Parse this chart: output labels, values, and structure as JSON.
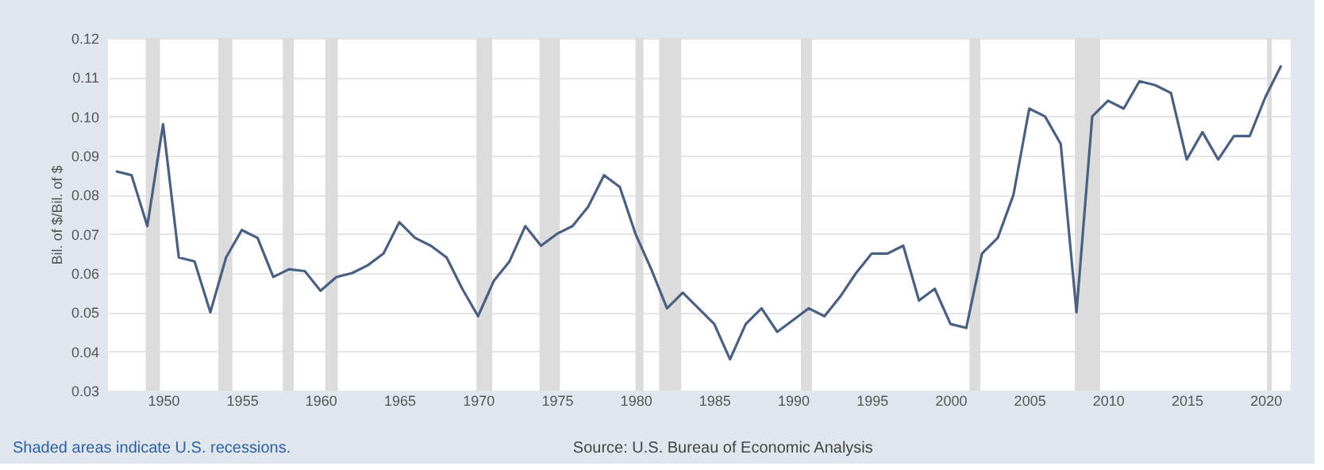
{
  "chart_data": {
    "type": "line",
    "ylabel": "Bil. of $/Bil. of $",
    "x": [
      1947,
      1948,
      1949,
      1950,
      1951,
      1952,
      1953,
      1954,
      1955,
      1956,
      1957,
      1958,
      1959,
      1960,
      1961,
      1962,
      1963,
      1964,
      1965,
      1966,
      1967,
      1968,
      1969,
      1970,
      1971,
      1972,
      1973,
      1974,
      1975,
      1976,
      1977,
      1978,
      1979,
      1980,
      1981,
      1982,
      1983,
      1984,
      1985,
      1986,
      1987,
      1988,
      1989,
      1990,
      1991,
      1992,
      1993,
      1994,
      1995,
      1996,
      1997,
      1998,
      1999,
      2000,
      2001,
      2002,
      2003,
      2004,
      2005,
      2006,
      2007,
      2008,
      2009,
      2010,
      2011,
      2012,
      2013,
      2014,
      2015,
      2016,
      2017,
      2018,
      2019,
      2020,
      2021
    ],
    "series": [
      {
        "color": "#4a6080",
        "values": [
          0.086,
          0.085,
          0.072,
          0.098,
          0.064,
          0.063,
          0.05,
          0.064,
          0.071,
          0.069,
          0.059,
          0.061,
          0.0605,
          0.0555,
          0.059,
          0.06,
          0.062,
          0.065,
          0.073,
          0.069,
          0.067,
          0.064,
          0.056,
          0.049,
          0.058,
          0.063,
          0.072,
          0.067,
          0.07,
          0.072,
          0.077,
          0.085,
          0.082,
          0.07,
          0.061,
          0.051,
          0.055,
          0.051,
          0.047,
          0.038,
          0.047,
          0.051,
          0.045,
          0.048,
          0.051,
          0.049,
          0.054,
          0.06,
          0.065,
          0.065,
          0.067,
          0.053,
          0.056,
          0.047,
          0.046,
          0.065,
          0.069,
          0.08,
          0.102,
          0.1,
          0.093,
          0.05,
          0.1,
          0.104,
          0.102,
          0.109,
          0.108,
          0.106,
          0.089,
          0.096,
          0.089,
          0.095,
          0.095,
          0.105,
          0.113
        ]
      }
    ],
    "xlim": [
      1946.5,
      2021.6
    ],
    "xticks": [
      1950,
      1955,
      1960,
      1965,
      1970,
      1975,
      1980,
      1985,
      1990,
      1995,
      2000,
      2005,
      2010,
      2015,
      2020
    ],
    "ylim": [
      0.03,
      0.12
    ],
    "yticks": [
      0.03,
      0.04,
      0.05,
      0.06,
      0.07,
      0.08,
      0.09,
      {
        "value": 0.1,
        "label": "0.10"
      },
      0.11,
      0.12
    ],
    "grid": "y",
    "bands": [
      {
        "axis": "x",
        "from": 1948.9,
        "to": 1949.8,
        "color": "#dcdcdc"
      },
      {
        "axis": "x",
        "from": 1953.5,
        "to": 1954.4,
        "color": "#dcdcdc"
      },
      {
        "axis": "x",
        "from": 1957.6,
        "to": 1958.3,
        "color": "#dcdcdc"
      },
      {
        "axis": "x",
        "from": 1960.3,
        "to": 1961.1,
        "color": "#dcdcdc"
      },
      {
        "axis": "x",
        "from": 1969.9,
        "to": 1970.9,
        "color": "#dcdcdc"
      },
      {
        "axis": "x",
        "from": 1973.9,
        "to": 1975.2,
        "color": "#dcdcdc"
      },
      {
        "axis": "x",
        "from": 1980.0,
        "to": 1980.5,
        "color": "#dcdcdc"
      },
      {
        "axis": "x",
        "from": 1981.5,
        "to": 1982.9,
        "color": "#dcdcdc"
      },
      {
        "axis": "x",
        "from": 1990.5,
        "to": 1991.2,
        "color": "#dcdcdc"
      },
      {
        "axis": "x",
        "from": 2001.2,
        "to": 2001.9,
        "color": "#dcdcdc"
      },
      {
        "axis": "x",
        "from": 2007.9,
        "to": 2009.5,
        "color": "#dcdcdc"
      },
      {
        "axis": "x",
        "from": 2020.1,
        "to": 2020.4,
        "color": "#dcdcdc"
      }
    ],
    "annotations": [
      "Shaded areas indicate U.S. recessions.",
      "Source: U.S. Bureau of Economic Analysis"
    ]
  }
}
